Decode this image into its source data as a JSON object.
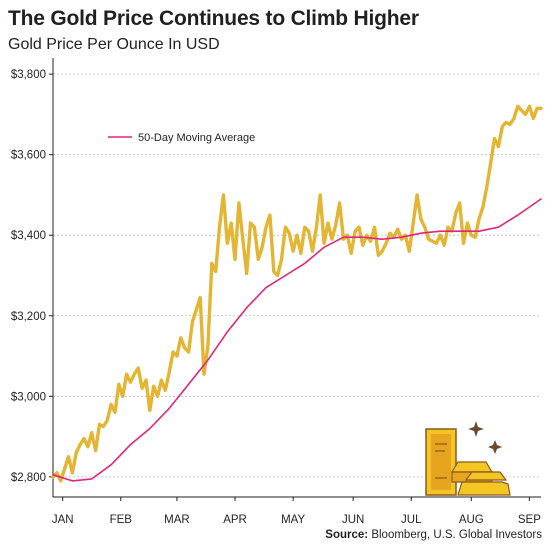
{
  "chart_data": {
    "type": "line",
    "title": "The Gold Price Continues to Climb Higher",
    "subtitle": "Gold Price Per Ounce In USD",
    "source_label": "Source:",
    "source_text": "Bloomberg, U.S. Global Investors",
    "ylim": [
      2750,
      3840
    ],
    "y_ticks": [
      2800,
      3000,
      3200,
      3400,
      3600,
      3800
    ],
    "y_tick_labels": [
      "$2,800",
      "$3,000",
      "$3,200",
      "$3,400",
      "$3,600",
      "$3,800"
    ],
    "x_range": [
      0,
      252
    ],
    "x_ticks": [
      5,
      35,
      64,
      94,
      124,
      155,
      185,
      216,
      246
    ],
    "x_tick_labels": [
      "JAN",
      "FEB",
      "MAR",
      "APR",
      "MAY",
      "JUN",
      "JUL",
      "AUG",
      "SEP"
    ],
    "grid": "horizontal",
    "legend": {
      "position": "top-left",
      "entries": [
        "50-Day Moving Average"
      ]
    },
    "series": [
      {
        "name": "Gold Price",
        "color": "#e3b532",
        "x": [
          0,
          2,
          4,
          6,
          8,
          10,
          12,
          14,
          16,
          18,
          20,
          22,
          24,
          26,
          28,
          30,
          32,
          34,
          36,
          38,
          40,
          42,
          44,
          46,
          48,
          50,
          52,
          54,
          56,
          58,
          60,
          62,
          64,
          66,
          68,
          70,
          72,
          74,
          76,
          78,
          80,
          82,
          84,
          86,
          88,
          90,
          92,
          94,
          96,
          98,
          100,
          102,
          104,
          106,
          108,
          110,
          112,
          114,
          116,
          118,
          120,
          122,
          124,
          126,
          128,
          130,
          132,
          134,
          136,
          138,
          140,
          142,
          144,
          146,
          148,
          150,
          152,
          154,
          156,
          158,
          160,
          162,
          164,
          166,
          168,
          170,
          172,
          174,
          176,
          178,
          180,
          182,
          184,
          186,
          188,
          190,
          192,
          194,
          196,
          198,
          200,
          202,
          204,
          206,
          208,
          210,
          212,
          214,
          216,
          218,
          220,
          222,
          224,
          226,
          228,
          230,
          232,
          234,
          236,
          238,
          240,
          242,
          244,
          246,
          248,
          250,
          252
        ],
        "values": [
          2800,
          2810,
          2790,
          2820,
          2850,
          2810,
          2860,
          2880,
          2895,
          2875,
          2910,
          2865,
          2930,
          2925,
          2940,
          2980,
          2960,
          3030,
          3000,
          3055,
          3035,
          3055,
          3070,
          3020,
          3040,
          2965,
          3025,
          3000,
          3040,
          3015,
          3060,
          3110,
          3100,
          3145,
          3120,
          3110,
          3185,
          3215,
          3245,
          3055,
          3125,
          3330,
          3310,
          3420,
          3500,
          3380,
          3430,
          3340,
          3480,
          3390,
          3305,
          3430,
          3420,
          3340,
          3370,
          3420,
          3450,
          3310,
          3300,
          3340,
          3420,
          3405,
          3360,
          3400,
          3355,
          3420,
          3410,
          3360,
          3420,
          3500,
          3380,
          3430,
          3390,
          3425,
          3480,
          3390,
          3400,
          3355,
          3410,
          3420,
          3375,
          3400,
          3385,
          3420,
          3350,
          3360,
          3380,
          3405,
          3395,
          3415,
          3390,
          3400,
          3360,
          3430,
          3500,
          3440,
          3420,
          3390,
          3385,
          3380,
          3400,
          3375,
          3420,
          3410,
          3455,
          3480,
          3380,
          3430,
          3400,
          3395,
          3440,
          3470,
          3520,
          3580,
          3640,
          3620,
          3670,
          3680,
          3675,
          3690,
          3720,
          3710,
          3700,
          3720,
          3690,
          3715,
          3715
        ]
      },
      {
        "name": "50-Day Moving Average",
        "color": "#e0257d",
        "x": [
          0,
          10,
          20,
          30,
          40,
          50,
          60,
          70,
          80,
          90,
          100,
          110,
          120,
          130,
          140,
          150,
          160,
          170,
          180,
          190,
          200,
          210,
          220,
          230,
          240,
          252
        ],
        "values": [
          2805,
          2790,
          2795,
          2830,
          2880,
          2920,
          2970,
          3030,
          3090,
          3160,
          3220,
          3270,
          3300,
          3330,
          3370,
          3395,
          3395,
          3390,
          3395,
          3405,
          3410,
          3410,
          3410,
          3420,
          3450,
          3490
        ]
      }
    ]
  }
}
